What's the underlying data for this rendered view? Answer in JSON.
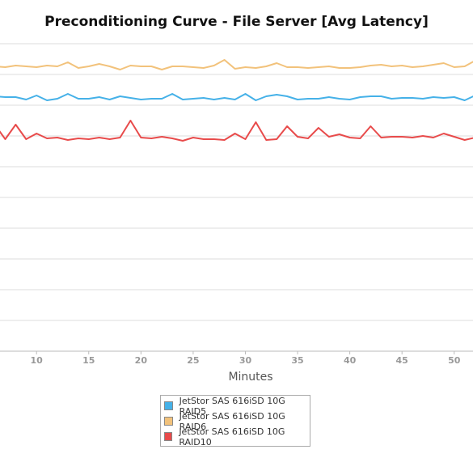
{
  "chart_data": {
    "type": "line",
    "title": "Preconditioning Curve - File Server [Avg Latency]",
    "xlabel": "Minutes",
    "ylabel": "",
    "x_ticks": [
      10,
      15,
      20,
      25,
      30,
      35,
      40,
      45,
      50
    ],
    "xlim": [
      6.5,
      51.8
    ],
    "grid": true,
    "legend_position": "bottom-center",
    "series": [
      {
        "name": "JetStor SAS 616iSD 10G RAID6",
        "color": "#f2c27b",
        "x": [
          6,
          7,
          8,
          9,
          10,
          11,
          12,
          13,
          14,
          15,
          16,
          17,
          18,
          19,
          20,
          21,
          22,
          23,
          24,
          25,
          26,
          27,
          28,
          29,
          30,
          31,
          32,
          33,
          34,
          35,
          36,
          37,
          38,
          39,
          40,
          41,
          42,
          43,
          44,
          45,
          46,
          47,
          48,
          49,
          50,
          51,
          52
        ],
        "values": [
          1.17,
          1.16,
          1.18,
          1.17,
          1.16,
          1.18,
          1.17,
          1.22,
          1.15,
          1.17,
          1.2,
          1.17,
          1.13,
          1.18,
          1.17,
          1.17,
          1.13,
          1.17,
          1.17,
          1.16,
          1.15,
          1.18,
          1.25,
          1.14,
          1.16,
          1.15,
          1.17,
          1.21,
          1.16,
          1.16,
          1.15,
          1.16,
          1.17,
          1.15,
          1.15,
          1.16,
          1.18,
          1.19,
          1.17,
          1.18,
          1.16,
          1.17,
          1.19,
          1.21,
          1.16,
          1.17,
          1.24
        ]
      },
      {
        "name": "JetStor SAS 616iSD 10G RAID5",
        "color": "#45b1e8",
        "x": [
          6,
          7,
          8,
          9,
          10,
          11,
          12,
          13,
          14,
          15,
          16,
          17,
          18,
          19,
          20,
          21,
          22,
          23,
          24,
          25,
          26,
          27,
          28,
          29,
          30,
          31,
          32,
          33,
          34,
          35,
          36,
          37,
          38,
          39,
          40,
          41,
          42,
          43,
          44,
          45,
          46,
          47,
          48,
          49,
          50,
          51,
          52
        ],
        "values": [
          0.8,
          0.79,
          0.79,
          0.76,
          0.81,
          0.75,
          0.77,
          0.83,
          0.77,
          0.77,
          0.79,
          0.76,
          0.8,
          0.78,
          0.76,
          0.77,
          0.77,
          0.83,
          0.76,
          0.77,
          0.78,
          0.76,
          0.78,
          0.76,
          0.83,
          0.75,
          0.8,
          0.82,
          0.8,
          0.76,
          0.77,
          0.77,
          0.79,
          0.77,
          0.76,
          0.79,
          0.8,
          0.8,
          0.77,
          0.78,
          0.78,
          0.77,
          0.79,
          0.78,
          0.79,
          0.75,
          0.81
        ]
      },
      {
        "name": "JetStor SAS 616iSD 10G RAID10",
        "color": "#e84b4b",
        "x": [
          6,
          7,
          8,
          9,
          10,
          11,
          12,
          13,
          14,
          15,
          16,
          17,
          18,
          19,
          20,
          21,
          22,
          23,
          24,
          25,
          26,
          27,
          28,
          29,
          30,
          31,
          32,
          33,
          34,
          35,
          36,
          37,
          38,
          39,
          40,
          41,
          42,
          43,
          44,
          45,
          46,
          47,
          48,
          49,
          50,
          51,
          52
        ],
        "values": [
          0.45,
          0.27,
          0.45,
          0.27,
          0.34,
          0.28,
          0.29,
          0.26,
          0.28,
          0.27,
          0.29,
          0.27,
          0.29,
          0.5,
          0.29,
          0.28,
          0.3,
          0.28,
          0.25,
          0.29,
          0.27,
          0.27,
          0.26,
          0.34,
          0.27,
          0.48,
          0.26,
          0.27,
          0.43,
          0.3,
          0.28,
          0.41,
          0.3,
          0.33,
          0.29,
          0.28,
          0.43,
          0.29,
          0.3,
          0.3,
          0.29,
          0.31,
          0.29,
          0.34,
          0.3,
          0.26,
          0.29
        ]
      }
    ],
    "legend_entries": [
      {
        "name": "JetStor SAS 616iSD 10G RAID5",
        "color": "#45b1e8"
      },
      {
        "name": "JetStor SAS 616iSD 10G RAID6",
        "color": "#f2c27b"
      },
      {
        "name": "JetStor SAS 616iSD 10G RAID10",
        "color": "#e84b4b"
      }
    ]
  }
}
